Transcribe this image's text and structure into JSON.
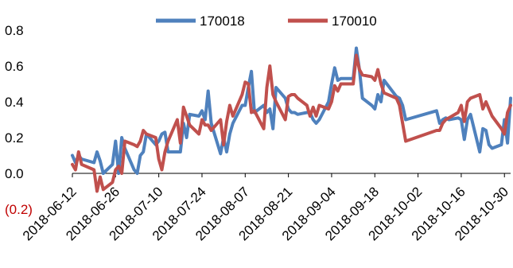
{
  "chart_data": {
    "type": "line",
    "title": "",
    "xlabel": "",
    "ylabel": "",
    "ylim": [
      -0.2,
      0.8
    ],
    "y_ticks": [
      {
        "value": 0.8,
        "label": "0.8"
      },
      {
        "value": 0.6,
        "label": "0.6"
      },
      {
        "value": 0.4,
        "label": "0.4"
      },
      {
        "value": 0.2,
        "label": "0.2"
      },
      {
        "value": 0.0,
        "label": "0.0"
      },
      {
        "value": -0.2,
        "label": "(0.2)"
      }
    ],
    "x_start": "2018-06-12",
    "x_end": "2018-11-01",
    "x_ticks": [
      "2018-06-12",
      "2018-06-26",
      "2018-07-10",
      "2018-07-24",
      "2018-08-07",
      "2018-08-21",
      "2018-09-04",
      "2018-09-18",
      "2018-10-02",
      "2018-10-16",
      "2018-10-30"
    ],
    "grid": false,
    "legend": "top-center",
    "colors": {
      "170018": "#4f81bd",
      "170010": "#c0504d",
      "negative_tick": "#c00000"
    },
    "series": [
      {
        "name": "170018",
        "x": [
          "2018-06-12",
          "2018-06-13",
          "2018-06-14",
          "2018-06-15",
          "2018-06-19",
          "2018-06-20",
          "2018-06-21",
          "2018-06-22",
          "2018-06-25",
          "2018-06-26",
          "2018-06-27",
          "2018-06-28",
          "2018-06-29",
          "2018-07-02",
          "2018-07-03",
          "2018-07-04",
          "2018-07-05",
          "2018-07-06",
          "2018-07-09",
          "2018-07-10",
          "2018-07-11",
          "2018-07-12",
          "2018-07-13",
          "2018-07-16",
          "2018-07-17",
          "2018-07-18",
          "2018-07-19",
          "2018-07-20",
          "2018-07-23",
          "2018-07-24",
          "2018-07-25",
          "2018-07-26",
          "2018-07-27",
          "2018-07-30",
          "2018-07-31",
          "2018-08-01",
          "2018-08-02",
          "2018-08-03",
          "2018-08-06",
          "2018-08-07",
          "2018-08-08",
          "2018-08-09",
          "2018-08-10",
          "2018-08-13",
          "2018-08-14",
          "2018-08-15",
          "2018-08-16",
          "2018-08-17",
          "2018-08-20",
          "2018-08-21",
          "2018-08-22",
          "2018-08-23",
          "2018-08-24",
          "2018-08-27",
          "2018-08-28",
          "2018-08-29",
          "2018-08-30",
          "2018-08-31",
          "2018-09-03",
          "2018-09-04",
          "2018-09-05",
          "2018-09-06",
          "2018-09-07",
          "2018-09-10",
          "2018-09-11",
          "2018-09-12",
          "2018-09-13",
          "2018-09-14",
          "2018-09-17",
          "2018-09-18",
          "2018-09-19",
          "2018-09-20",
          "2018-09-21",
          "2018-09-25",
          "2018-09-26",
          "2018-09-27",
          "2018-09-28",
          "2018-10-08",
          "2018-10-09",
          "2018-10-10",
          "2018-10-11",
          "2018-10-12",
          "2018-10-15",
          "2018-10-16",
          "2018-10-17",
          "2018-10-18",
          "2018-10-19",
          "2018-10-22",
          "2018-10-23",
          "2018-10-24",
          "2018-10-25",
          "2018-10-26",
          "2018-10-29",
          "2018-10-30",
          "2018-10-31",
          "2018-11-01"
        ],
        "values": [
          0.1,
          0.06,
          0.1,
          0.08,
          0.06,
          0.12,
          0.07,
          0.0,
          0.05,
          0.18,
          0.0,
          0.2,
          0.14,
          0.02,
          0.0,
          0.1,
          0.12,
          0.22,
          0.16,
          0.18,
          0.22,
          0.23,
          0.12,
          0.12,
          0.12,
          0.28,
          0.2,
          0.33,
          0.32,
          0.35,
          0.3,
          0.46,
          0.28,
          0.11,
          0.2,
          0.12,
          0.22,
          0.28,
          0.38,
          0.38,
          0.48,
          0.57,
          0.34,
          0.38,
          0.34,
          0.36,
          0.25,
          0.48,
          0.42,
          0.36,
          0.34,
          0.34,
          0.33,
          0.34,
          0.34,
          0.3,
          0.28,
          0.3,
          0.4,
          0.5,
          0.59,
          0.52,
          0.53,
          0.53,
          0.53,
          0.7,
          0.58,
          0.42,
          0.38,
          0.36,
          0.44,
          0.4,
          0.52,
          0.43,
          0.42,
          0.38,
          0.3,
          0.35,
          0.28,
          0.3,
          0.31,
          0.3,
          0.31,
          0.3,
          0.19,
          0.3,
          0.33,
          0.12,
          0.25,
          0.24,
          0.16,
          0.14,
          0.16,
          0.3,
          0.17,
          0.42
        ]
      },
      {
        "name": "170010",
        "x": [
          "2018-06-12",
          "2018-06-13",
          "2018-06-14",
          "2018-06-15",
          "2018-06-19",
          "2018-06-20",
          "2018-06-21",
          "2018-06-22",
          "2018-06-25",
          "2018-06-26",
          "2018-06-27",
          "2018-06-28",
          "2018-06-29",
          "2018-07-02",
          "2018-07-03",
          "2018-07-04",
          "2018-07-05",
          "2018-07-06",
          "2018-07-09",
          "2018-07-10",
          "2018-07-11",
          "2018-07-12",
          "2018-07-13",
          "2018-07-16",
          "2018-07-17",
          "2018-07-18",
          "2018-07-19",
          "2018-07-20",
          "2018-07-23",
          "2018-07-24",
          "2018-07-25",
          "2018-07-26",
          "2018-07-27",
          "2018-07-30",
          "2018-07-31",
          "2018-08-01",
          "2018-08-02",
          "2018-08-03",
          "2018-08-06",
          "2018-08-07",
          "2018-08-08",
          "2018-08-09",
          "2018-08-10",
          "2018-08-13",
          "2018-08-14",
          "2018-08-15",
          "2018-08-16",
          "2018-08-17",
          "2018-08-20",
          "2018-08-21",
          "2018-08-22",
          "2018-08-23",
          "2018-08-24",
          "2018-08-27",
          "2018-08-28",
          "2018-08-29",
          "2018-08-30",
          "2018-08-31",
          "2018-09-03",
          "2018-09-04",
          "2018-09-05",
          "2018-09-06",
          "2018-09-07",
          "2018-09-10",
          "2018-09-11",
          "2018-09-12",
          "2018-09-13",
          "2018-09-14",
          "2018-09-17",
          "2018-09-18",
          "2018-09-19",
          "2018-09-20",
          "2018-09-21",
          "2018-09-25",
          "2018-09-26",
          "2018-09-27",
          "2018-09-28",
          "2018-10-08",
          "2018-10-09",
          "2018-10-10",
          "2018-10-11",
          "2018-10-12",
          "2018-10-15",
          "2018-10-16",
          "2018-10-17",
          "2018-10-18",
          "2018-10-19",
          "2018-10-22",
          "2018-10-23",
          "2018-10-24",
          "2018-10-25",
          "2018-10-26",
          "2018-10-29",
          "2018-10-30",
          "2018-10-31",
          "2018-11-01"
        ],
        "values": [
          0.05,
          0.02,
          0.12,
          0.05,
          0.02,
          -0.1,
          -0.02,
          -0.09,
          -0.05,
          0.02,
          0.04,
          0.0,
          0.18,
          0.16,
          0.15,
          0.18,
          0.24,
          0.22,
          0.2,
          0.08,
          0.02,
          0.12,
          0.18,
          0.3,
          0.17,
          0.37,
          0.32,
          0.27,
          0.22,
          0.3,
          0.27,
          0.27,
          0.24,
          0.3,
          0.16,
          0.29,
          0.38,
          0.32,
          0.44,
          0.51,
          0.5,
          0.34,
          0.35,
          0.25,
          0.48,
          0.6,
          0.44,
          0.4,
          0.3,
          0.43,
          0.44,
          0.44,
          0.42,
          0.38,
          0.32,
          0.37,
          0.32,
          0.38,
          0.36,
          0.4,
          0.49,
          0.46,
          0.5,
          0.5,
          0.5,
          0.66,
          0.58,
          0.55,
          0.54,
          0.52,
          0.58,
          0.5,
          0.45,
          0.42,
          0.38,
          0.28,
          0.18,
          0.24,
          0.24,
          0.28,
          0.3,
          0.31,
          0.34,
          0.38,
          0.29,
          0.4,
          0.42,
          0.44,
          0.36,
          0.4,
          0.36,
          0.32,
          0.25,
          0.22,
          0.34,
          0.38
        ]
      }
    ]
  }
}
